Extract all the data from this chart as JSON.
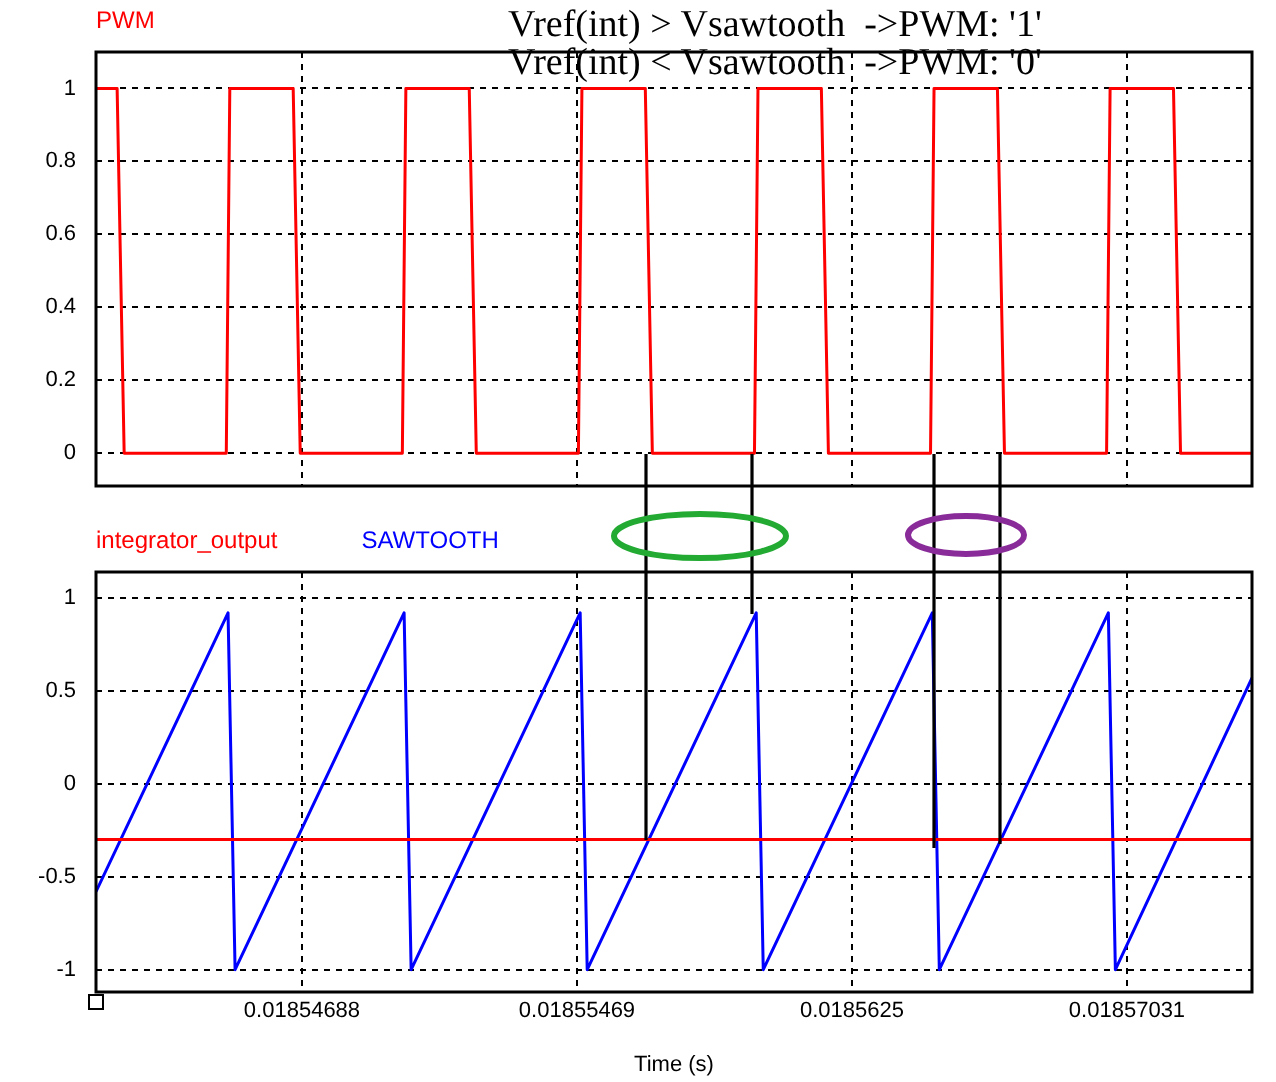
{
  "chart_data": [
    {
      "type": "line",
      "annotations": [
        "Vref(int) > Vsawtooth  ->PWM: '1'",
        "Vref(int) < Vsawtooth  ->PWM: '0'"
      ],
      "series": [
        {
          "name": "PWM",
          "color": "#ff0000",
          "x": [
            0.01854103,
            0.01854163,
            0.01854183,
            0.01854473,
            0.01854483,
            0.01854663,
            0.01854683,
            0.01854973,
            0.01854983,
            0.01855163,
            0.01855183,
            0.01855473,
            0.01855483,
            0.01855663,
            0.01855683,
            0.01855973,
            0.01855983,
            0.01856163,
            0.01856183,
            0.01856473,
            0.01856483,
            0.01856663,
            0.01856683,
            0.01856973,
            0.01856983,
            0.01857163,
            0.01857183,
            0.01857386
          ],
          "values": [
            1,
            1,
            0,
            0,
            1,
            1,
            0,
            0,
            1,
            1,
            0,
            0,
            1,
            1,
            0,
            0,
            1,
            1,
            0,
            0,
            1,
            1,
            0,
            0,
            1,
            1,
            0,
            0
          ]
        }
      ],
      "xlim": [
        0.01854103,
        0.01857386
      ],
      "xticks": [
        0.01854688,
        0.01855469,
        0.0185625,
        0.01857031
      ],
      "ylim": [
        -0.09,
        1.1
      ],
      "yticks": [
        0,
        0.2,
        0.4,
        0.6,
        0.8,
        1
      ],
      "grid": true,
      "legend": "top left",
      "tick_labels": "y"
    },
    {
      "type": "line",
      "xlabel": "Time (s)",
      "series": [
        {
          "name": "integrator_output",
          "color": "#ff0000",
          "x": [
            0.01854103,
            0.01857386
          ],
          "values": [
            -0.3,
            -0.3
          ]
        },
        {
          "name": "SAWTOOTH",
          "color": "#0000ff",
          "x": [
            0.01854103,
            0.01854478,
            0.01854498,
            0.01854978,
            0.01854998,
            0.01855478,
            0.01855498,
            0.01855978,
            0.01855998,
            0.01856478,
            0.01856498,
            0.01856978,
            0.01856998,
            0.01857386
          ],
          "values": [
            -0.58,
            0.92,
            -1,
            0.92,
            -1,
            0.92,
            -1,
            0.92,
            -1,
            0.92,
            -1,
            0.92,
            -1,
            0.57
          ]
        }
      ],
      "xlim": [
        0.01854103,
        0.01857386
      ],
      "xticks": [
        0.01854688,
        0.01855469,
        0.0185625,
        0.01857031
      ],
      "ylim": [
        -1.12,
        1.14
      ],
      "yticks": [
        -1,
        -0.5,
        0,
        0.5,
        1
      ],
      "grid": true,
      "legend": "top left"
    }
  ]
}
